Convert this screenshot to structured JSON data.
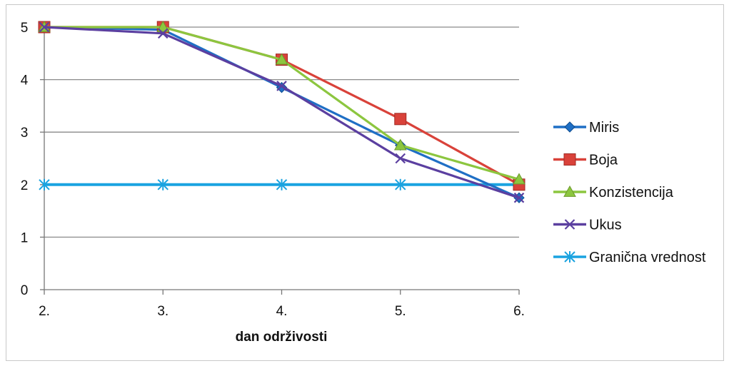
{
  "chart_data": {
    "type": "line",
    "title": "",
    "xlabel": "dan održivosti",
    "ylabel": "",
    "categories": [
      "2.",
      "3.",
      "4.",
      "5.",
      "6."
    ],
    "ylim": [
      0,
      5
    ],
    "yticks": [
      "0",
      "1",
      "2",
      "3",
      "4",
      "5"
    ],
    "grid": true,
    "legend_position": "right",
    "series": [
      {
        "name": "Miris",
        "values": [
          5,
          4.95,
          3.85,
          2.75,
          1.75
        ],
        "color": "#1f6fc5",
        "marker": "diamond"
      },
      {
        "name": "Boja",
        "values": [
          5,
          5,
          4.38,
          3.25,
          2.0
        ],
        "color": "#d9423a",
        "marker": "square"
      },
      {
        "name": "Konzistencija",
        "values": [
          5,
          5,
          4.38,
          2.75,
          2.1
        ],
        "color": "#8cc63f",
        "marker": "triangle"
      },
      {
        "name": "Ukus",
        "values": [
          5,
          4.88,
          3.88,
          2.5,
          1.75
        ],
        "color": "#5b3fa0",
        "marker": "x"
      },
      {
        "name": "Granična vrednost",
        "values": [
          2,
          2,
          2,
          2,
          2
        ],
        "color": "#1aa3e0",
        "marker": "asterisk"
      }
    ]
  }
}
